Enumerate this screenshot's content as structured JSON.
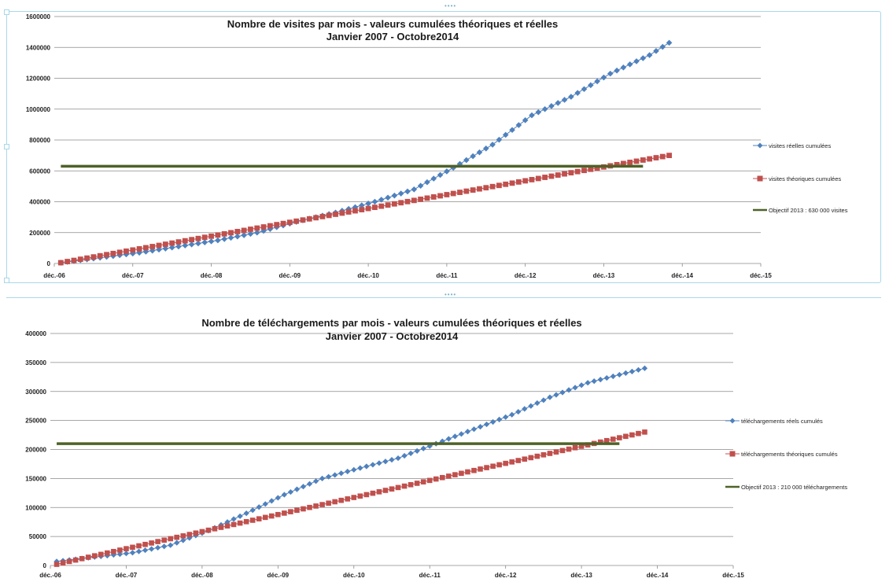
{
  "chart_data": [
    {
      "type": "line",
      "title": "Nombre de visites par mois  - valeurs cumulées théoriques et réelles",
      "subtitle": "Janvier 2007 - Octobre2014",
      "x_ticks": [
        "déc.-06",
        "déc.-07",
        "déc.-08",
        "déc.-09",
        "déc.-10",
        "déc.-11",
        "déc.-12",
        "déc.-13",
        "déc.-14",
        "déc.-15"
      ],
      "y_ticks": [
        "0",
        "200000",
        "400000",
        "600000",
        "800000",
        "1000000",
        "1200000",
        "1400000",
        "1600000"
      ],
      "xlim": [
        "2006-12",
        "2015-12"
      ],
      "ylim": [
        0,
        1600000
      ],
      "grid": true,
      "legend_position": "right",
      "series": [
        {
          "name": "visites réelles cumulées",
          "marker": "diamond",
          "color": "#4f81bd",
          "points": [
            [
              "2007-01",
              5000
            ],
            [
              "2008-01",
              70000
            ],
            [
              "2009-01",
              150000
            ],
            [
              "2009-07",
              200000
            ],
            [
              "2010-01",
              270000
            ],
            [
              "2010-07",
              330000
            ],
            [
              "2011-01",
              400000
            ],
            [
              "2011-07",
              480000
            ],
            [
              "2012-01",
              620000
            ],
            [
              "2012-07",
              770000
            ],
            [
              "2013-01",
              960000
            ],
            [
              "2013-07",
              1080000
            ],
            [
              "2014-01",
              1230000
            ],
            [
              "2014-07",
              1350000
            ],
            [
              "2014-10",
              1430000
            ]
          ]
        },
        {
          "name": "visites théoriques cumulées",
          "marker": "square",
          "color": "#c0504d",
          "points": [
            [
              "2007-01",
              5000
            ],
            [
              "2014-10",
              700000
            ]
          ]
        },
        {
          "name": "Objectif 2013 : 630 000 visites",
          "marker": "none",
          "color": "#4f6228",
          "points": [
            [
              "2007-01",
              630000
            ],
            [
              "2014-06",
              630000
            ]
          ]
        }
      ]
    },
    {
      "type": "line",
      "title": "Nombre de téléchargements par mois  - valeurs cumulées théoriques et réelles",
      "subtitle": "Janvier 2007 - Octobre2014",
      "x_ticks": [
        "déc.-06",
        "déc.-07",
        "déc.-08",
        "déc.-09",
        "déc.-10",
        "déc.-11",
        "déc.-12",
        "déc.-13",
        "déc.-14",
        "déc.-15"
      ],
      "y_ticks": [
        "0",
        "50000",
        "100000",
        "150000",
        "200000",
        "250000",
        "300000",
        "350000",
        "400000"
      ],
      "xlim": [
        "2006-12",
        "2015-12"
      ],
      "ylim": [
        0,
        400000
      ],
      "grid": true,
      "legend_position": "right",
      "series": [
        {
          "name": "téléchargements réels cumulés",
          "marker": "diamond",
          "color": "#4f81bd",
          "points": [
            [
              "2007-01",
              7000
            ],
            [
              "2008-01",
              22000
            ],
            [
              "2008-07",
              35000
            ],
            [
              "2009-01",
              60000
            ],
            [
              "2009-07",
              90000
            ],
            [
              "2010-01",
              122000
            ],
            [
              "2010-07",
              150000
            ],
            [
              "2011-01",
              168000
            ],
            [
              "2011-07",
              185000
            ],
            [
              "2012-01",
              210000
            ],
            [
              "2012-07",
              235000
            ],
            [
              "2013-01",
              260000
            ],
            [
              "2013-07",
              290000
            ],
            [
              "2014-01",
              315000
            ],
            [
              "2014-10",
              340000
            ]
          ]
        },
        {
          "name": "téléchargements théoriques cumulés",
          "marker": "square",
          "color": "#c0504d",
          "points": [
            [
              "2007-01",
              2000
            ],
            [
              "2014-10",
              230000
            ]
          ]
        },
        {
          "name": "Objectif 2013 : 210 000 téléchargements",
          "marker": "none",
          "color": "#4f6228",
          "points": [
            [
              "2007-01",
              210000
            ],
            [
              "2014-06",
              210000
            ]
          ]
        }
      ]
    }
  ]
}
